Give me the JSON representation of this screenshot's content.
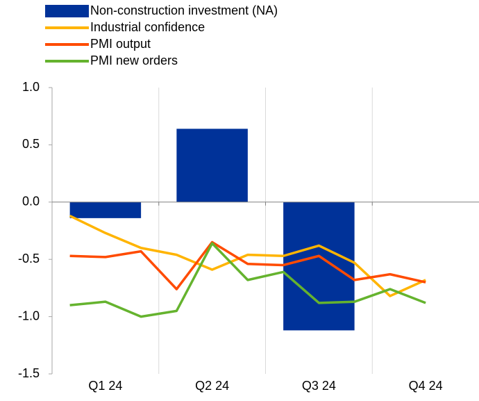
{
  "chart_data": {
    "type": "bar-line",
    "categories": [
      null,
      "Q1 24",
      null,
      null,
      "Q2 24",
      null,
      null,
      "Q3 24",
      null,
      null,
      "Q4 24",
      null
    ],
    "series": [
      {
        "name": "Non-construction investment (NA)",
        "type": "bar",
        "color": "#003299",
        "values": [
          null,
          -0.14,
          null,
          null,
          0.64,
          null,
          null,
          -1.12,
          null,
          null,
          null,
          null
        ]
      },
      {
        "name": "Industrial confidence",
        "type": "line",
        "color": "#ffb400",
        "values": [
          -0.12,
          -0.27,
          -0.4,
          -0.46,
          -0.59,
          -0.46,
          -0.47,
          -0.38,
          -0.53,
          -0.82,
          -0.68,
          null
        ]
      },
      {
        "name": "PMI output",
        "type": "line",
        "color": "#ff4b00",
        "values": [
          -0.47,
          -0.48,
          -0.43,
          -0.76,
          -0.35,
          -0.54,
          -0.55,
          -0.47,
          -0.68,
          -0.63,
          -0.7,
          null
        ]
      },
      {
        "name": "PMI new orders",
        "type": "line",
        "color": "#65b32e",
        "values": [
          -0.9,
          -0.87,
          -1.0,
          -0.95,
          -0.36,
          -0.68,
          -0.61,
          -0.88,
          -0.87,
          -0.76,
          -0.88,
          null
        ]
      }
    ],
    "ylim": [
      -1.5,
      1.0
    ],
    "yticks": [
      {
        "value": 1.0,
        "label": "1.0"
      },
      {
        "value": 0.5,
        "label": "0.5"
      },
      {
        "value": 0.0,
        "label": "0.0"
      },
      {
        "value": -0.5,
        "label": "-0.5"
      },
      {
        "value": -1.0,
        "label": "-1.0"
      },
      {
        "value": -1.5,
        "label": "-1.5"
      }
    ]
  }
}
